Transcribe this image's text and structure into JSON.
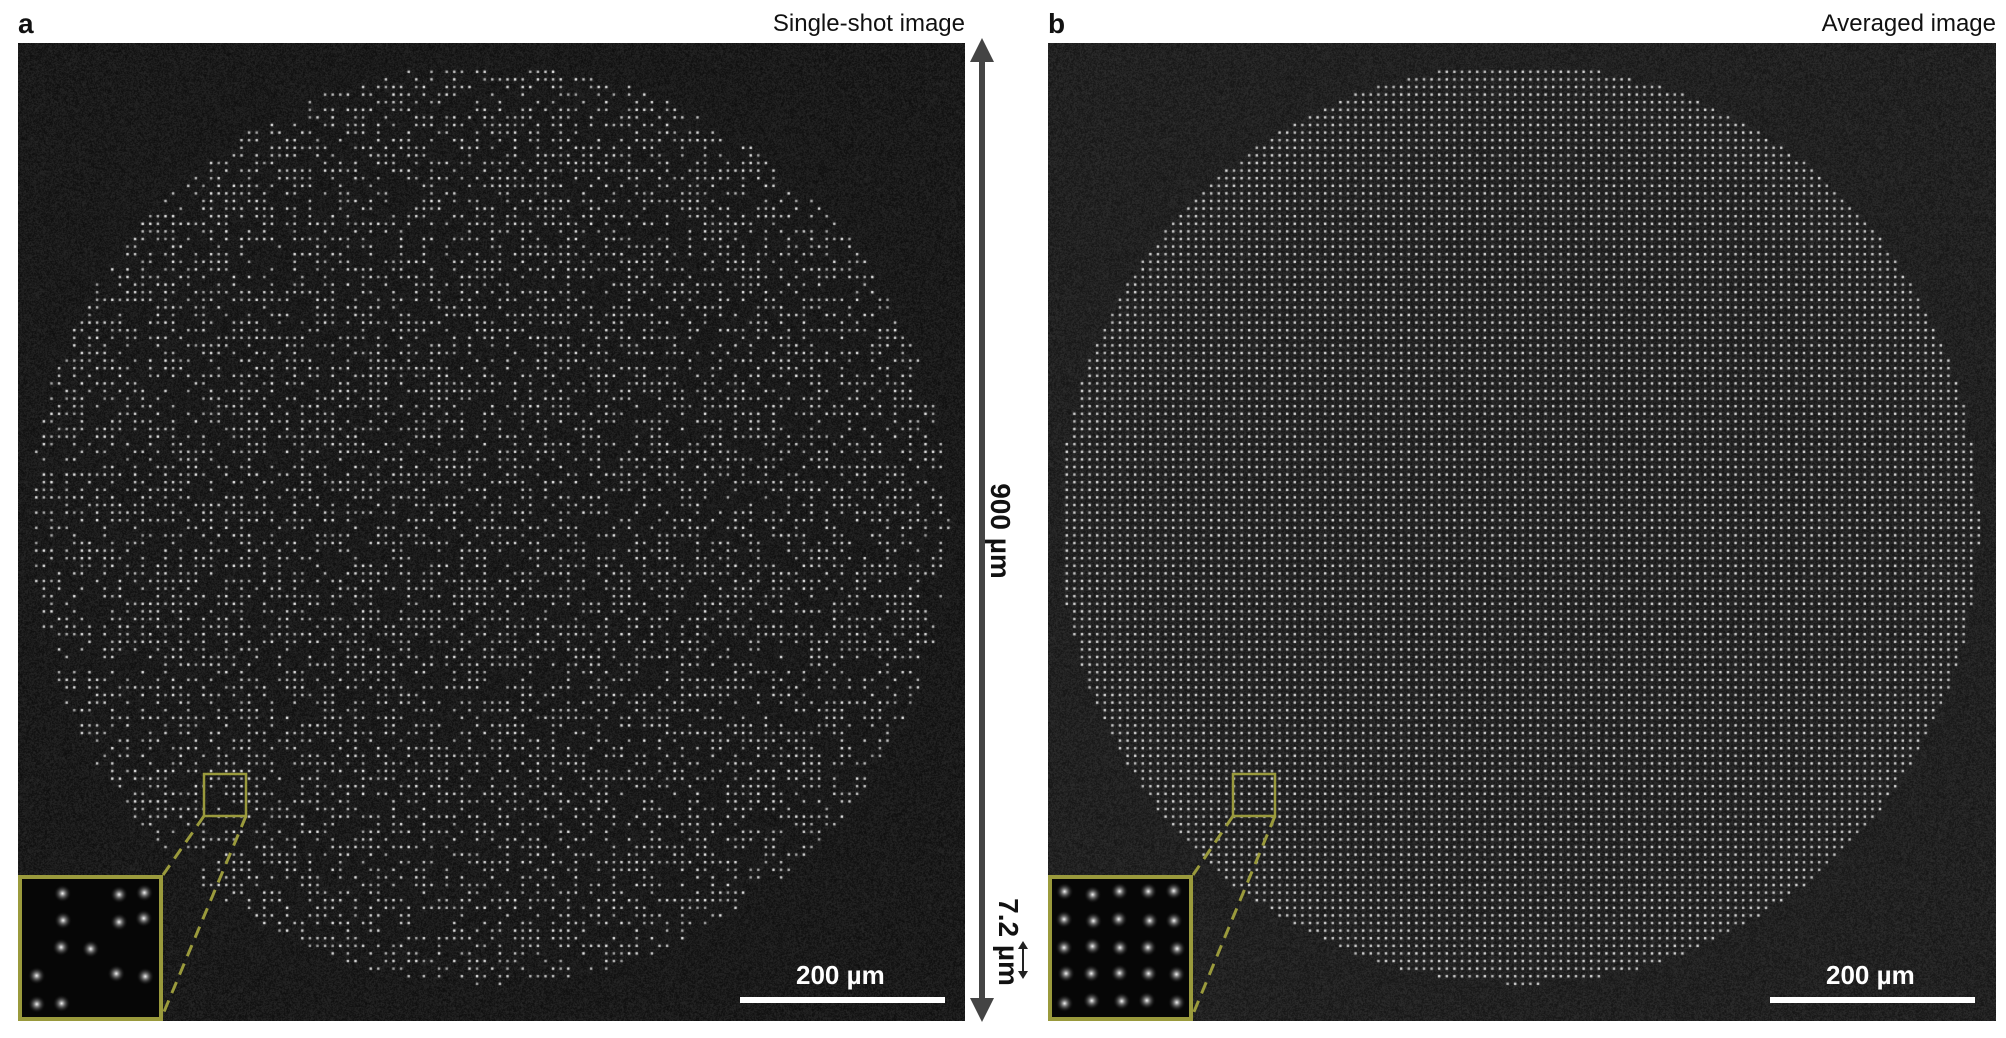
{
  "panels": {
    "a": {
      "letter": "a",
      "title": "Single-shot image",
      "scale_label": "200 µm",
      "fill_fraction": 0.52
    },
    "b": {
      "letter": "b",
      "title": "Averaged image",
      "scale_label": "200 µm",
      "fill_fraction": 1.0
    }
  },
  "dimension_label": "900 µm",
  "inset_spacing_label": "7.2 µm",
  "colors": {
    "background": "#ffffff",
    "image_dark": "#0f0f0f",
    "atom_bright": "#e8e8e8",
    "inset_frame": "#9a9a3c",
    "arrow": "#444444"
  }
}
